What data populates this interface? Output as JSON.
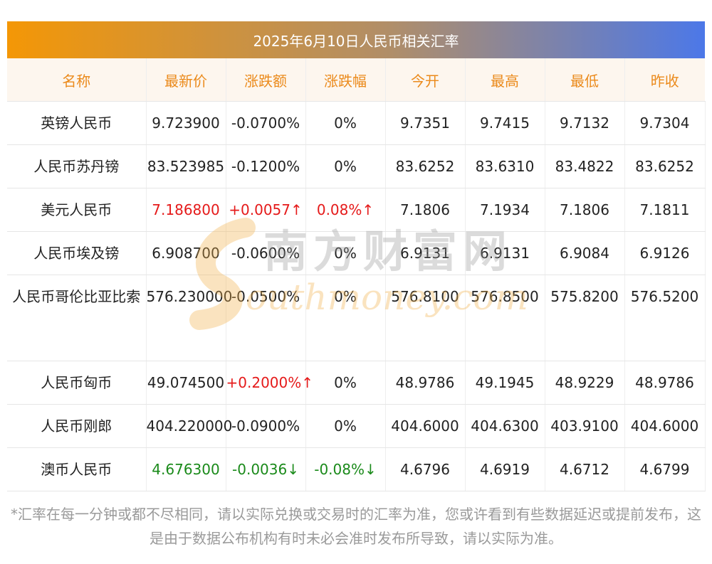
{
  "title": "2025年6月10日人民币相关汇率",
  "headers": [
    "名称",
    "最新价",
    "涨跌额",
    "涨跌幅",
    "今开",
    "最高",
    "最低",
    "昨收"
  ],
  "rows": [
    {
      "name": "英镑人民币",
      "latest": "9.723900",
      "change": "-0.0700%",
      "pct": "0%",
      "open": "9.7351",
      "high": "9.7415",
      "low": "9.7132",
      "prev": "9.7304",
      "trend": "flat"
    },
    {
      "name": "人民币苏丹镑",
      "latest": "83.523985",
      "change": "-0.1200%",
      "pct": "0%",
      "open": "83.6252",
      "high": "83.6310",
      "low": "83.4822",
      "prev": "83.6252",
      "trend": "flat"
    },
    {
      "name": "美元人民币",
      "latest": "7.186800",
      "change": "+0.0057↑",
      "pct": "0.08%↑",
      "open": "7.1806",
      "high": "7.1934",
      "low": "7.1806",
      "prev": "7.1811",
      "trend": "up"
    },
    {
      "name": "人民币埃及镑",
      "latest": "6.908700",
      "change": "-0.0600%",
      "pct": "0%",
      "open": "6.9131",
      "high": "6.9131",
      "low": "6.9084",
      "prev": "6.9126",
      "trend": "flat"
    },
    {
      "name": "人民币哥伦比亚比索",
      "latest": "576.230000",
      "change": "-0.0500%",
      "pct": "0%",
      "open": "576.8100",
      "high": "576.8500",
      "low": "575.8200",
      "prev": "576.5200",
      "trend": "flat"
    },
    {
      "name": "人民币匈币",
      "latest": "49.074500",
      "change": "+0.2000%↑",
      "pct": "0%",
      "open": "48.9786",
      "high": "49.1945",
      "low": "48.9229",
      "prev": "48.9786",
      "trend": "up-change"
    },
    {
      "name": "人民币刚郎",
      "latest": "404.220000",
      "change": "-0.0900%",
      "pct": "0%",
      "open": "404.6000",
      "high": "404.6300",
      "low": "403.9100",
      "prev": "404.6000",
      "trend": "flat"
    },
    {
      "name": "澳币人民币",
      "latest": "4.676300",
      "change": "-0.0036↓",
      "pct": "-0.08%↓",
      "open": "4.6796",
      "high": "4.6919",
      "low": "4.6712",
      "prev": "4.6799",
      "trend": "down"
    }
  ],
  "watermark": {
    "cn": "南方财富网",
    "en": "outhmoney.com"
  },
  "note": "*汇率在每一分钟或都不尽相同，请以实际兑换或交易时的汇率为准，您或许看到有些数据延迟或提前发布，这是由于数据公布机构有时未必会准时发布所导致，请以实际为准。",
  "colors": {
    "up": "#e51a1a",
    "down": "#1a8a1a",
    "header_text": "#eb8a1b"
  }
}
